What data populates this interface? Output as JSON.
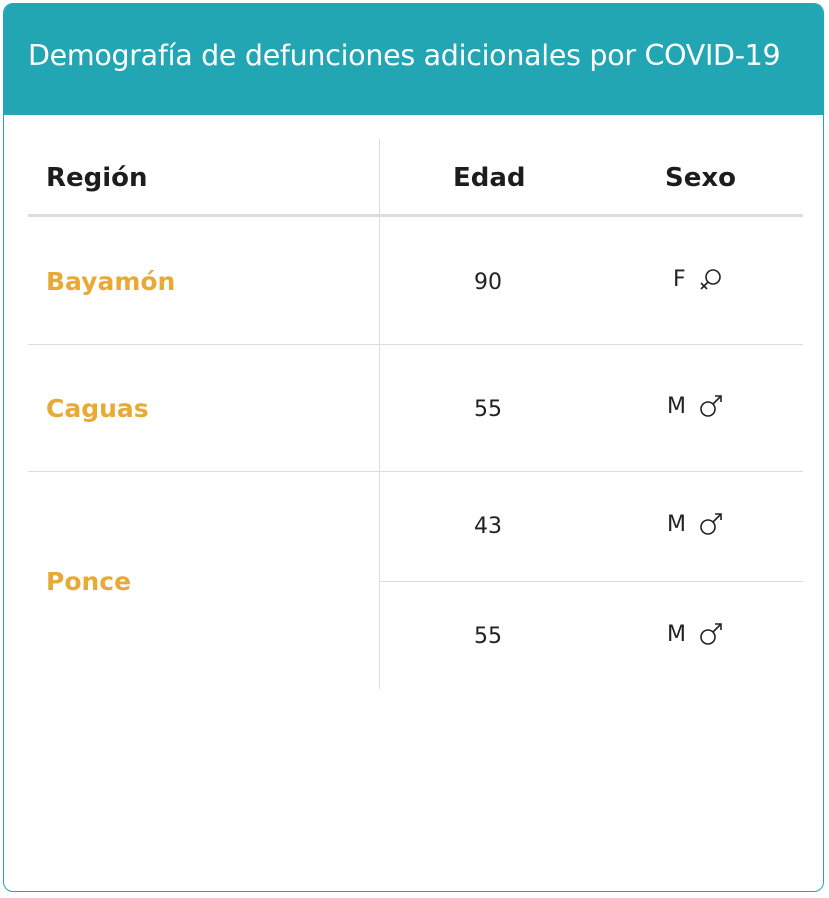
{
  "header": {
    "title": "Demografía de defunciones adicionales por COVID-19"
  },
  "table": {
    "columns": [
      "Región",
      "Edad",
      "Sexo"
    ],
    "groups": [
      {
        "region": "Bayamón",
        "rows": [
          {
            "edad": "90",
            "sexo": "F",
            "icon": "female-icon"
          }
        ]
      },
      {
        "region": "Caguas",
        "rows": [
          {
            "edad": "55",
            "sexo": "M",
            "icon": "male-icon"
          }
        ]
      },
      {
        "region": "Ponce",
        "rows": [
          {
            "edad": "43",
            "sexo": "M",
            "icon": "male-icon"
          },
          {
            "edad": "55",
            "sexo": "M",
            "icon": "male-icon"
          }
        ]
      }
    ]
  },
  "colors": {
    "header_bg": "#22a6b3",
    "region_text": "#e8a935",
    "border": "#22a6b3"
  }
}
